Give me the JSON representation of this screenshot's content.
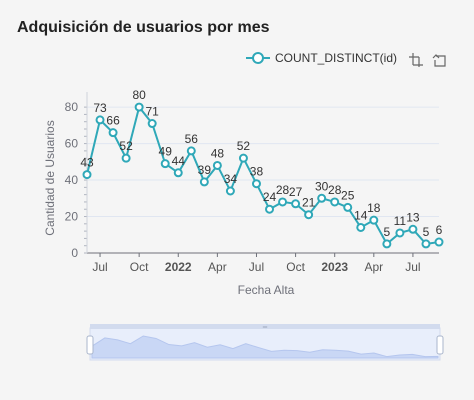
{
  "card": {
    "title": "Adquisición de usuarios por mes"
  },
  "toolbox": {
    "zoom_icon": "data-zoom-icon",
    "reset_icon": "zoom-reset-icon"
  },
  "colors": {
    "series": "#2fa8b8",
    "axis": "#6e7079",
    "grid": "#e0e6f1",
    "slider_fill": "#c9d7f5",
    "slider_bg": "#e8eefb",
    "slider_handle": "#ffffff"
  },
  "chart_data": {
    "type": "line",
    "xlabel": "Fecha Alta",
    "ylabel": "Cantidad de Usuarios",
    "ylim": [
      0,
      85
    ],
    "yticks": [
      0,
      20,
      40,
      60,
      80
    ],
    "x_ticks": [
      {
        "label": "Jul",
        "bold": false,
        "index": 1
      },
      {
        "label": "Oct",
        "bold": false,
        "index": 4
      },
      {
        "label": "2022",
        "bold": true,
        "index": 7
      },
      {
        "label": "Apr",
        "bold": false,
        "index": 10
      },
      {
        "label": "Jul",
        "bold": false,
        "index": 13
      },
      {
        "label": "Oct",
        "bold": false,
        "index": 16
      },
      {
        "label": "2023",
        "bold": true,
        "index": 19
      },
      {
        "label": "Apr",
        "bold": false,
        "index": 22
      },
      {
        "label": "Jul",
        "bold": false,
        "index": 25
      }
    ],
    "x": [
      "2021-06",
      "2021-07",
      "2021-08",
      "2021-09",
      "2021-10",
      "2021-11",
      "2021-12",
      "2022-01",
      "2022-02",
      "2022-03",
      "2022-04",
      "2022-05",
      "2022-06",
      "2022-07",
      "2022-08",
      "2022-09",
      "2022-10",
      "2022-11",
      "2022-12",
      "2023-01",
      "2023-02",
      "2023-03",
      "2023-04",
      "2023-05",
      "2023-06",
      "2023-07",
      "2023-08",
      "2023-09"
    ],
    "series": [
      {
        "name": "COUNT_DISTINCT(id)",
        "values": [
          43,
          73,
          66,
          52,
          80,
          71,
          49,
          44,
          56,
          39,
          48,
          34,
          52,
          38,
          24,
          28,
          27,
          21,
          30,
          28,
          25,
          14,
          18,
          5,
          11,
          13,
          5,
          6
        ]
      }
    ],
    "legend": "top-right",
    "grid": true,
    "data_zoom_slider": true
  }
}
